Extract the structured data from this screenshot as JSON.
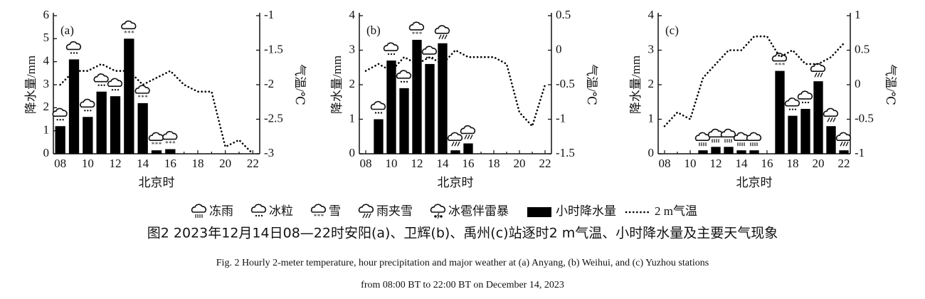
{
  "chart_data": [
    {
      "type": "bar-line",
      "panel": "(a)",
      "y_label": "降水量/mm",
      "y2_label": "气温/℃",
      "x_label": "北京时",
      "categories": [
        "08",
        null,
        "10",
        null,
        "12",
        null,
        "14",
        null,
        "16",
        null,
        "18",
        null,
        "20",
        null,
        "22"
      ],
      "series": [
        {
          "name": "小时降水量",
          "color": "#000000",
          "values": [
            1.2,
            4.1,
            1.6,
            2.7,
            2.5,
            5.0,
            2.2,
            0.15,
            0.2,
            0,
            0,
            0,
            0,
            0,
            0
          ]
        },
        {
          "name": "2 m气温",
          "color": "#000000",
          "axis": "y2",
          "values": [
            -2.0,
            -1.8,
            -1.8,
            -1.7,
            -1.8,
            -1.8,
            -2.0,
            -1.9,
            -1.8,
            -2.0,
            -2.1,
            -2.1,
            -2.9,
            -2.8,
            -3.0
          ]
        }
      ],
      "weather": [
        "冰粒",
        "冰粒",
        "冰粒",
        "冰粒",
        "冰粒",
        "雪",
        "雪",
        "雪",
        "雪",
        null,
        null,
        null,
        null,
        null,
        null
      ],
      "ylim": [
        0,
        6
      ],
      "yticks": [
        0,
        1,
        2,
        3,
        4,
        5,
        6
      ],
      "y2lim": [
        -3,
        -1
      ],
      "y2ticks": [
        -3,
        -2.5,
        -2,
        -1.5,
        -1
      ]
    },
    {
      "type": "bar-line",
      "panel": "(b)",
      "y_label": "降水量/mm",
      "y2_label": "气温/℃",
      "x_label": "北京时",
      "categories": [
        "08",
        null,
        "10",
        null,
        "12",
        null,
        "14",
        null,
        "16",
        null,
        "18",
        null,
        "20",
        null,
        "22"
      ],
      "series": [
        {
          "color": "#000000",
          "values": [
            0,
            1.0,
            2.7,
            1.9,
            3.3,
            2.6,
            3.2,
            0.1,
            0.3,
            0,
            0,
            0,
            0,
            0,
            0
          ]
        },
        {
          "color": "#000000",
          "axis": "y2",
          "values": [
            -0.3,
            -0.2,
            -0.3,
            -0.1,
            -0.2,
            -0.1,
            -0.2,
            0.0,
            -0.1,
            -0.1,
            -0.1,
            -0.2,
            -0.9,
            -1.1,
            -0.5
          ]
        }
      ],
      "weather": [
        null,
        "冰粒",
        "冰粒",
        "冰粒",
        "雪",
        "冰粒",
        "雨夹雪",
        "雨夹雪",
        "雨夹雪",
        null,
        null,
        null,
        null,
        null,
        null
      ],
      "ylim": [
        0,
        4
      ],
      "yticks": [
        0,
        1,
        2,
        3,
        4
      ],
      "y2lim": [
        -1.5,
        0.5
      ],
      "y2ticks": [
        -1.5,
        -1,
        -0.5,
        0,
        0.5
      ]
    },
    {
      "type": "bar-line",
      "panel": "(c)",
      "y_label": "降水量/mm",
      "y2_label": "气温/℃",
      "x_label": "北京时",
      "categories": [
        "08",
        null,
        "10",
        null,
        "12",
        null,
        "14",
        null,
        "16",
        null,
        "18",
        null,
        "20",
        null,
        "22"
      ],
      "series": [
        {
          "color": "#000000",
          "values": [
            0,
            0,
            0,
            0.1,
            0.2,
            0.2,
            0.1,
            0.1,
            0,
            2.4,
            1.1,
            1.3,
            2.1,
            0.8,
            0.1
          ]
        },
        {
          "color": "#000000",
          "axis": "y2",
          "values": [
            -0.6,
            -0.4,
            -0.5,
            0.1,
            0.3,
            0.5,
            0.5,
            0.7,
            0.7,
            0.4,
            0.5,
            0.3,
            0.3,
            0.4,
            0.6
          ]
        }
      ],
      "weather": [
        null,
        null,
        null,
        "冻雨",
        "冻雨",
        "冻雨",
        "冻雨",
        "冻雨",
        null,
        "雪",
        "冰粒",
        "冰粒",
        "雨夹雪",
        "雨夹雪",
        "雨夹雪"
      ],
      "ylim": [
        0,
        4
      ],
      "yticks": [
        0,
        1,
        2,
        3,
        4
      ],
      "y2lim": [
        -1,
        1
      ],
      "y2ticks": [
        -1,
        -0.5,
        0,
        0.5,
        1
      ]
    }
  ],
  "legend": {
    "weather": [
      "冻雨",
      "冰粒",
      "雪",
      "雨夹雪",
      "冰雹伴雷暴"
    ]
  },
  "caption": {
    "cn": "图2 2023年12月14日08—22时安阳(a)、卫辉(b)、禹州(c)站逐时2 m气温、小时降水量及主要天气现象",
    "en1": "Fig. 2 Hourly 2-meter temperature, hour precipitation and major weather at (a) Anyang, (b) Weihui, and (c) Yuzhou stations",
    "en2": "from 08:00 BT to 22:00 BT on December 14, 2023"
  }
}
